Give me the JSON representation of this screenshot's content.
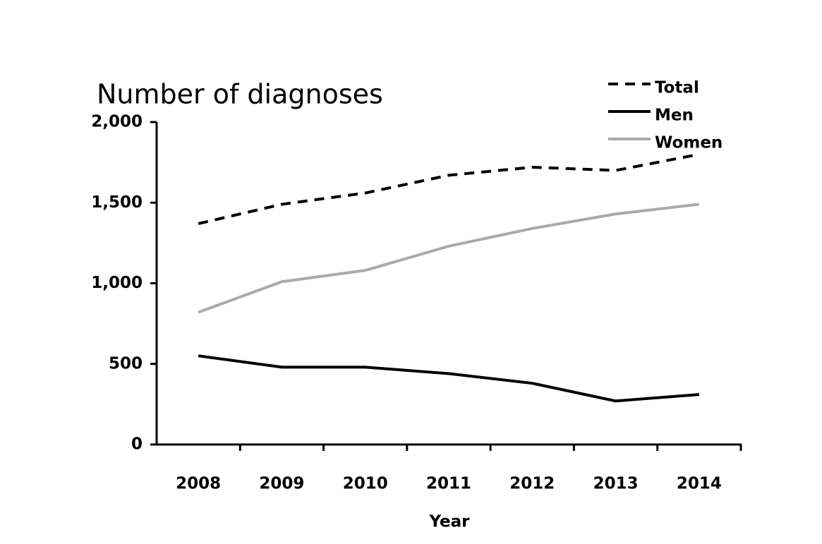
{
  "chart_data": {
    "type": "line",
    "title": "Number of diagnoses",
    "x_label": "Year",
    "categories": [
      "2008",
      "2009",
      "2010",
      "2011",
      "2012",
      "2013",
      "2014"
    ],
    "series": [
      {
        "name": "Total",
        "color": "#000000",
        "line_style": "dashed",
        "values": [
          1370,
          1490,
          1560,
          1670,
          1720,
          1700,
          1800
        ]
      },
      {
        "name": "Men",
        "color": "#000000",
        "line_style": "solid",
        "values": [
          550,
          480,
          480,
          440,
          380,
          270,
          310
        ]
      },
      {
        "name": "Women",
        "color": "#aaaaaa",
        "line_style": "solid",
        "values": [
          820,
          1010,
          1080,
          1230,
          1340,
          1430,
          1490
        ]
      }
    ],
    "ylim": [
      0,
      2000
    ],
    "yticks": [
      0,
      500,
      {
        "value": 1000,
        "label": "1,000"
      },
      {
        "value": 1500,
        "label": "1,500"
      },
      {
        "value": 2000,
        "label": "2,000"
      }
    ],
    "grid": false,
    "legend": "top-right"
  }
}
